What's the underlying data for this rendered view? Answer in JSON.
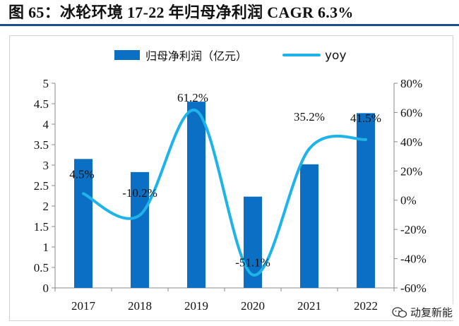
{
  "figure": {
    "title": "图 65：冰轮环境 17-22 年归母净利润 CAGR 6.3%"
  },
  "watermark": {
    "text": "动复新能"
  },
  "colors": {
    "bar": "#0b6fc3",
    "line": "#1eb4ea",
    "title_rule": "#1b4f8c"
  },
  "chart_data": {
    "type": "bar",
    "title": "",
    "categories": [
      "2017",
      "2018",
      "2019",
      "2020",
      "2021",
      "2022"
    ],
    "series": [
      {
        "name": "归母净利润（亿元）",
        "type": "bar",
        "axis": "left",
        "values": [
          3.15,
          2.83,
          4.55,
          2.23,
          3.02,
          4.27
        ]
      },
      {
        "name": "yoy",
        "type": "line",
        "axis": "right",
        "values": [
          4.5,
          -10.2,
          61.2,
          -51.1,
          35.2,
          41.5
        ],
        "labels": [
          "4.5%",
          "-10.2%",
          "61.2%",
          "-51.1%",
          "35.2%",
          "41.5%"
        ]
      }
    ],
    "y_left": {
      "min": 0,
      "max": 5,
      "ticks": [
        "0",
        "0.5",
        "1",
        "1.5",
        "2",
        "2.5",
        "3",
        "3.5",
        "4",
        "4.5",
        "5"
      ]
    },
    "y_right": {
      "min": -60,
      "max": 80,
      "ticks": [
        "-60%",
        "-40%",
        "-20%",
        "0%",
        "20%",
        "40%",
        "60%",
        "80%"
      ]
    },
    "grid": false,
    "legend_position": "top"
  }
}
